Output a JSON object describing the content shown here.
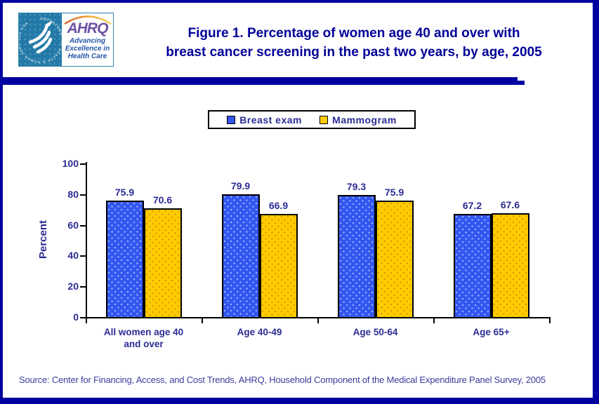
{
  "page": {
    "border_color": "#0000A1",
    "background": "#FFFFFF"
  },
  "header": {
    "title_line1": "Figure 1. Percentage of women age 40 and over with",
    "title_line2": "breast cancer screening in the past two years, by age, 2005",
    "logo": {
      "hhs_circle_text": "DEPARTMENT OF HEALTH & HUMAN SERVICES USA",
      "ahrq_acronym": "AHRQ",
      "tagline_line1": "Advancing",
      "tagline_line2": "Excellence in",
      "tagline_line3": "Health Care"
    }
  },
  "colors": {
    "title_navy": "#000099",
    "chart_text_navy": "#2B2B94",
    "axis_black": "#000000",
    "breast_exam_blue": "#3355F0",
    "mammogram_yellow": "#FFCC00",
    "divider_navy": "#0000A1",
    "hhs_teal": "#2379A7",
    "ahrq_purple": "#6F51A1"
  },
  "chart_data": {
    "type": "bar",
    "title": "Figure 1. Percentage of women age 40 and over with breast cancer screening in the past two years, by age, 2005",
    "categories": [
      "All women age 40 and over",
      "Age 40-49",
      "Age 50-64",
      "Age 65+"
    ],
    "category_lines": [
      [
        "All women age 40",
        "and over"
      ],
      [
        "Age 40-49"
      ],
      [
        "Age 50-64"
      ],
      [
        "Age 65+"
      ]
    ],
    "series": [
      {
        "name": "Breast exam",
        "color": "#3355F0",
        "values": [
          75.9,
          79.9,
          79.3,
          67.2
        ]
      },
      {
        "name": "Mammogram",
        "color": "#FFCC00",
        "values": [
          70.6,
          66.9,
          75.9,
          67.6
        ]
      }
    ],
    "xlabel": "",
    "ylabel": "Percent",
    "ylim": [
      0,
      100
    ],
    "yticks": [
      0,
      20,
      40,
      60,
      80,
      100
    ],
    "grid": false,
    "legend_position": "top-center",
    "value_labels_shown": true
  },
  "source": "Source: Center for Financing, Access, and Cost Trends, AHRQ, Household Component of the Medical Expenditure Panel Survey, 2005"
}
